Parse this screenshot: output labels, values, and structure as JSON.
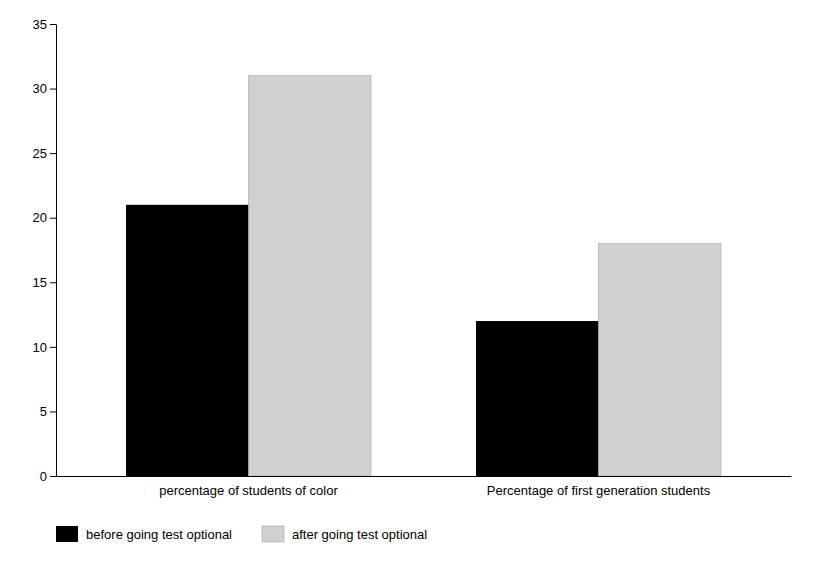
{
  "chart_data": {
    "type": "bar",
    "categories": [
      "percentage of students of color",
      "Percentage of first generation students"
    ],
    "series": [
      {
        "name": "before going test optional",
        "color": "#000000",
        "values": [
          21,
          12
        ]
      },
      {
        "name": "after going test optional",
        "color": "#d0d0d0",
        "values": [
          31,
          18
        ]
      }
    ],
    "ylim": [
      0,
      35
    ],
    "yticks": [
      0,
      5,
      10,
      15,
      20,
      25,
      30,
      35
    ],
    "grid": false,
    "legend": "bottom"
  }
}
